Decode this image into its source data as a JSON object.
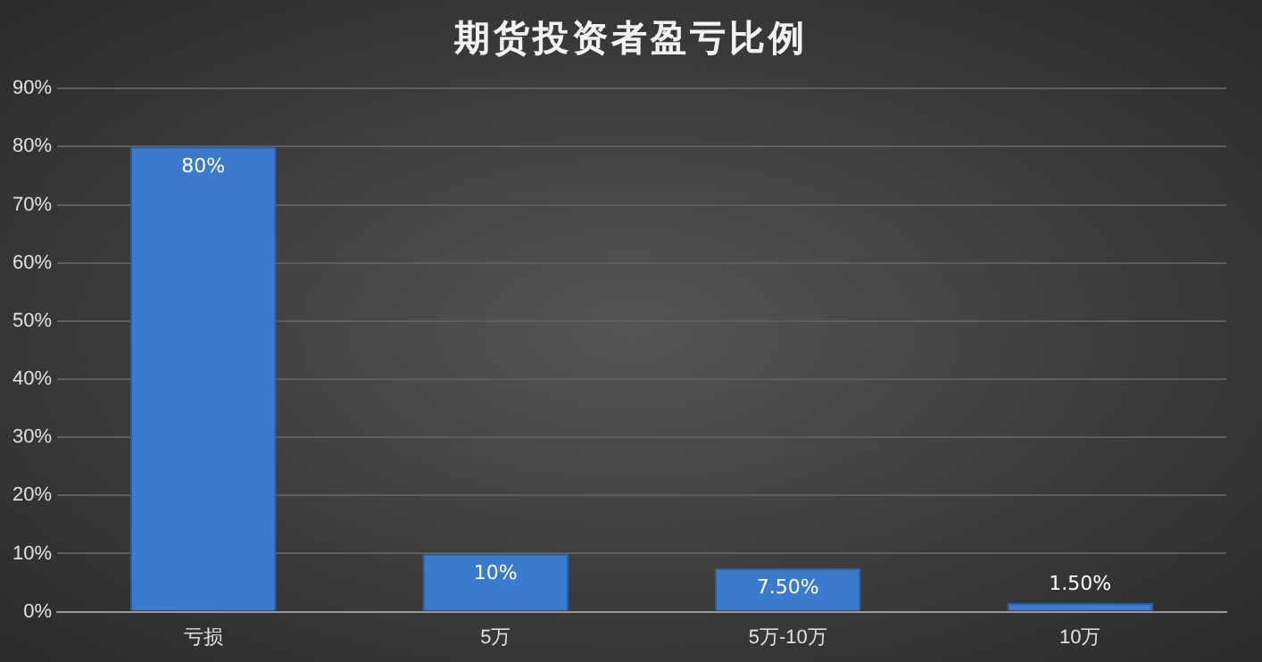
{
  "chart_data": {
    "type": "bar",
    "title": "期货投资者盈亏比例",
    "categories": [
      "亏损",
      "5万",
      "5万-10万",
      "10万"
    ],
    "values": [
      80,
      10,
      7.5,
      1.5
    ],
    "value_labels": [
      "80%",
      "10%",
      "7.50%",
      "1.50%"
    ],
    "color": "#3b7bcf",
    "ylim": [
      0,
      90
    ],
    "yticks": [
      {
        "value": 0,
        "label": "0%"
      },
      {
        "value": 10,
        "label": "10%"
      },
      {
        "value": 20,
        "label": "20%"
      },
      {
        "value": 30,
        "label": "30%"
      },
      {
        "value": 40,
        "label": "40%"
      },
      {
        "value": 50,
        "label": "50%"
      },
      {
        "value": 60,
        "label": "60%"
      },
      {
        "value": 70,
        "label": "70%"
      },
      {
        "value": 80,
        "label": "80%"
      },
      {
        "value": 90,
        "label": "90%"
      }
    ],
    "grid": "y",
    "legend": false
  }
}
